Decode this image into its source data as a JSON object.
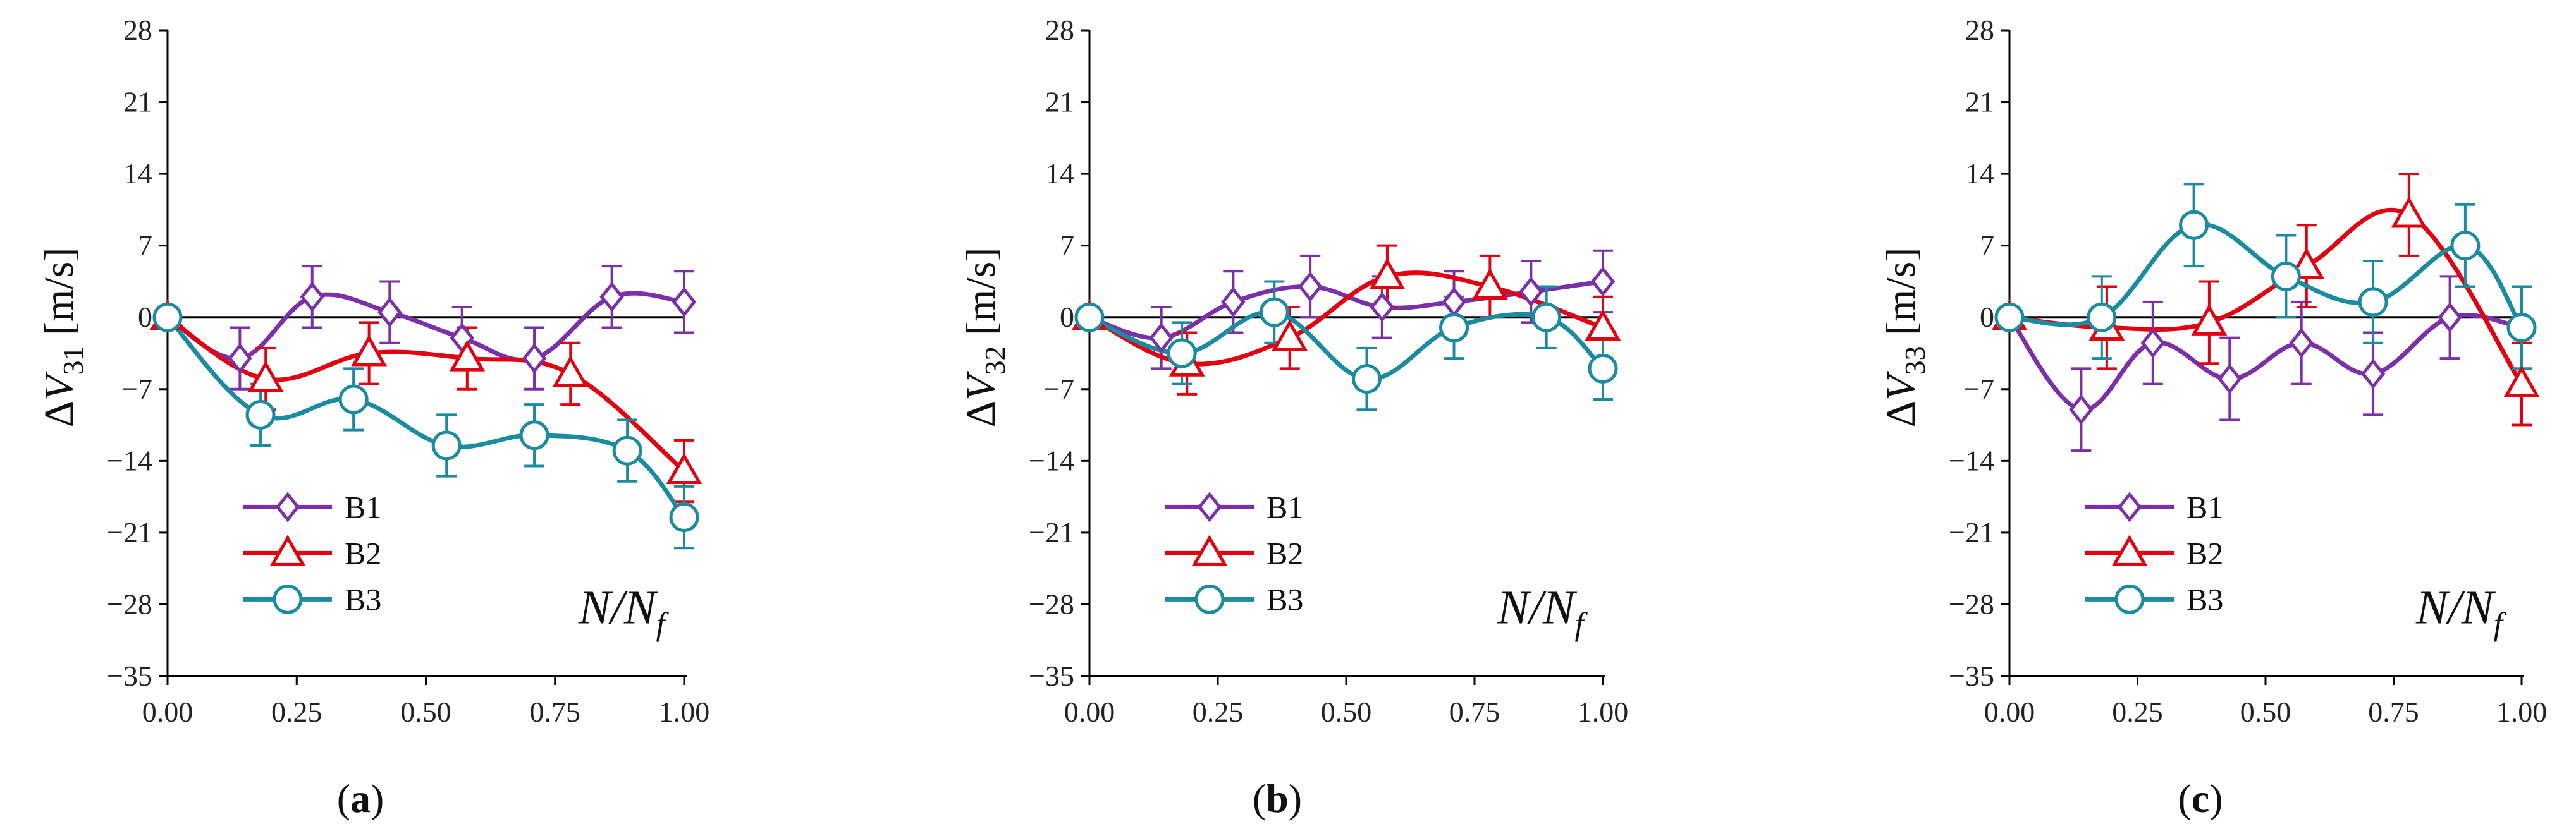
{
  "figure": {
    "colors": {
      "B1": "#7b2fa8",
      "B2": "#e3000f",
      "B3": "#1a8ba0",
      "axis": "#000000"
    },
    "x_label": "N/N",
    "x_label_sub": "f"
  },
  "chart_data": [
    {
      "type": "line",
      "panel_label": "(a)",
      "panel_letter": "a",
      "ylabel_prefix": "ΔV",
      "ylabel_sub": "31",
      "ylabel_unit": "[m/s]",
      "xlim": [
        0,
        1
      ],
      "ylim": [
        -35,
        28
      ],
      "xticks": [
        "0.00",
        "0.25",
        "0.50",
        "0.75",
        "1.00"
      ],
      "xtick_values": [
        0,
        0.25,
        0.5,
        0.75,
        1
      ],
      "yticks": [
        "28",
        "21",
        "14",
        "7",
        "0",
        "−7",
        "−14",
        "−21",
        "−28",
        "−35"
      ],
      "ytick_values": [
        28,
        21,
        14,
        7,
        0,
        -7,
        -14,
        -21,
        -28,
        -35
      ],
      "legend": [
        "B1",
        "B2",
        "B3"
      ],
      "series": [
        {
          "name": "B1",
          "marker": "diamond",
          "x": [
            0,
            0.14,
            0.28,
            0.43,
            0.57,
            0.71,
            0.86,
            1.0
          ],
          "y": [
            0,
            -4,
            2,
            0.5,
            -2,
            -4,
            2,
            1.5
          ],
          "err": [
            0,
            3,
            3,
            3,
            3,
            3,
            3,
            3
          ]
        },
        {
          "name": "B2",
          "marker": "triangle",
          "x": [
            0,
            0.19,
            0.39,
            0.58,
            0.78,
            1.0
          ],
          "y": [
            0,
            -6,
            -3.5,
            -4,
            -5.5,
            -15
          ],
          "err": [
            0,
            3,
            3,
            3,
            3,
            3
          ]
        },
        {
          "name": "B3",
          "marker": "circle",
          "x": [
            0,
            0.18,
            0.36,
            0.54,
            0.71,
            0.89,
            1.0
          ],
          "y": [
            0,
            -9.5,
            -8,
            -12.5,
            -11.5,
            -13,
            -19.5
          ],
          "err": [
            0,
            3,
            3,
            3,
            3,
            3,
            3
          ]
        }
      ]
    },
    {
      "type": "line",
      "panel_label": "(b)",
      "panel_letter": "b",
      "ylabel_prefix": "ΔV",
      "ylabel_sub": "32",
      "ylabel_unit": "[m/s]",
      "xlim": [
        0,
        1
      ],
      "ylim": [
        -35,
        28
      ],
      "xticks": [
        "0.00",
        "0.25",
        "0.50",
        "0.75",
        "1.00"
      ],
      "xtick_values": [
        0,
        0.25,
        0.5,
        0.75,
        1
      ],
      "yticks": [
        "28",
        "21",
        "14",
        "7",
        "0",
        "−7",
        "−14",
        "−21",
        "−28",
        "−35"
      ],
      "ytick_values": [
        28,
        21,
        14,
        7,
        0,
        -7,
        -14,
        -21,
        -28,
        -35
      ],
      "legend": [
        "B1",
        "B2",
        "B3"
      ],
      "series": [
        {
          "name": "B1",
          "marker": "diamond",
          "x": [
            0,
            0.14,
            0.28,
            0.43,
            0.57,
            0.71,
            0.86,
            1.0
          ],
          "y": [
            0,
            -2,
            1.5,
            3,
            1,
            1.5,
            2.5,
            3.5
          ],
          "err": [
            0,
            3,
            3,
            3,
            3,
            3,
            3,
            3
          ]
        },
        {
          "name": "B2",
          "marker": "triangle",
          "x": [
            0,
            0.19,
            0.39,
            0.58,
            0.78,
            1.0
          ],
          "y": [
            0,
            -4.5,
            -2,
            4,
            3,
            -1
          ],
          "err": [
            0,
            3,
            3,
            3,
            3,
            3
          ]
        },
        {
          "name": "B3",
          "marker": "circle",
          "x": [
            0,
            0.18,
            0.36,
            0.54,
            0.71,
            0.89,
            1.0
          ],
          "y": [
            0,
            -3.5,
            0.5,
            -6,
            -1,
            0,
            -5
          ],
          "err": [
            0,
            3,
            3,
            3,
            3,
            3,
            3
          ]
        }
      ]
    },
    {
      "type": "line",
      "panel_label": "(c)",
      "panel_letter": "c",
      "ylabel_prefix": "ΔV",
      "ylabel_sub": "33",
      "ylabel_unit": "[m/s]",
      "xlim": [
        0,
        1
      ],
      "ylim": [
        -35,
        28
      ],
      "xticks": [
        "0.00",
        "0.25",
        "0.50",
        "0.75",
        "1.00"
      ],
      "xtick_values": [
        0,
        0.25,
        0.5,
        0.75,
        1
      ],
      "yticks": [
        "28",
        "21",
        "14",
        "7",
        "0",
        "−7",
        "−14",
        "−21",
        "−28",
        "−35"
      ],
      "ytick_values": [
        28,
        21,
        14,
        7,
        0,
        -7,
        -14,
        -21,
        -28,
        -35
      ],
      "legend": [
        "B1",
        "B2",
        "B3"
      ],
      "series": [
        {
          "name": "B1",
          "marker": "diamond",
          "x": [
            0,
            0.14,
            0.28,
            0.43,
            0.57,
            0.71,
            0.86,
            1.0
          ],
          "y": [
            0,
            -9,
            -2.5,
            -6,
            -2.5,
            -5.5,
            0,
            -1
          ],
          "err": [
            0,
            4,
            4,
            4,
            4,
            4,
            4,
            4
          ]
        },
        {
          "name": "B2",
          "marker": "triangle",
          "x": [
            0,
            0.19,
            0.39,
            0.58,
            0.78,
            1.0
          ],
          "y": [
            0,
            -1,
            -0.5,
            5,
            10,
            -6.5
          ],
          "err": [
            0,
            4,
            4,
            4,
            4,
            4
          ]
        },
        {
          "name": "B3",
          "marker": "circle",
          "x": [
            0,
            0.18,
            0.36,
            0.54,
            0.71,
            0.89,
            1.0
          ],
          "y": [
            0,
            0,
            9,
            4,
            1.5,
            7,
            -1
          ],
          "err": [
            0,
            4,
            4,
            4,
            4,
            4,
            4
          ]
        }
      ]
    }
  ]
}
